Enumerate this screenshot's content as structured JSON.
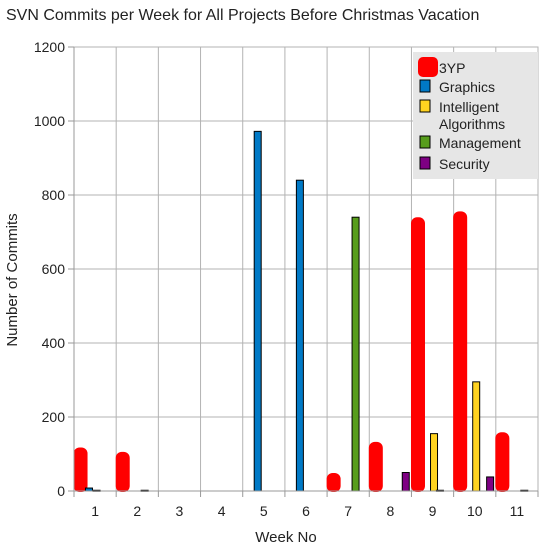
{
  "chart_data": {
    "type": "bar",
    "title": "SVN Commits per Week for All Projects Before Christmas Vacation",
    "xlabel": "Week No",
    "ylabel": "Number of Commits",
    "ylim": [
      0,
      1200
    ],
    "yticks": [
      "0",
      "200",
      "400",
      "600",
      "800",
      "1000",
      "1200"
    ],
    "categories": [
      "1",
      "2",
      "3",
      "4",
      "5",
      "6",
      "7",
      "8",
      "9",
      "10",
      "11"
    ],
    "grid": true,
    "legend_position": "top-right",
    "series": [
      {
        "name": "3YP",
        "color": "#ff0000",
        "values": [
          115,
          103,
          0,
          0,
          0,
          0,
          46,
          130,
          737,
          753,
          156
        ]
      },
      {
        "name": "Graphics",
        "color": "#0079c6",
        "values": [
          8,
          0,
          0,
          0,
          972,
          840,
          0,
          0,
          0,
          0,
          0
        ]
      },
      {
        "name": "Intelligent Algorithms",
        "color": "#ffd320",
        "values": [
          2,
          0,
          0,
          0,
          0,
          0,
          0,
          0,
          155,
          295,
          0
        ]
      },
      {
        "name": "Management",
        "color": "#579d1c",
        "values": [
          0,
          2,
          0,
          0,
          0,
          0,
          740,
          0,
          2,
          0,
          2
        ]
      },
      {
        "name": "Security",
        "color": "#7e0083",
        "values": [
          0,
          0,
          0,
          0,
          0,
          0,
          0,
          50,
          0,
          38,
          0
        ]
      }
    ]
  }
}
